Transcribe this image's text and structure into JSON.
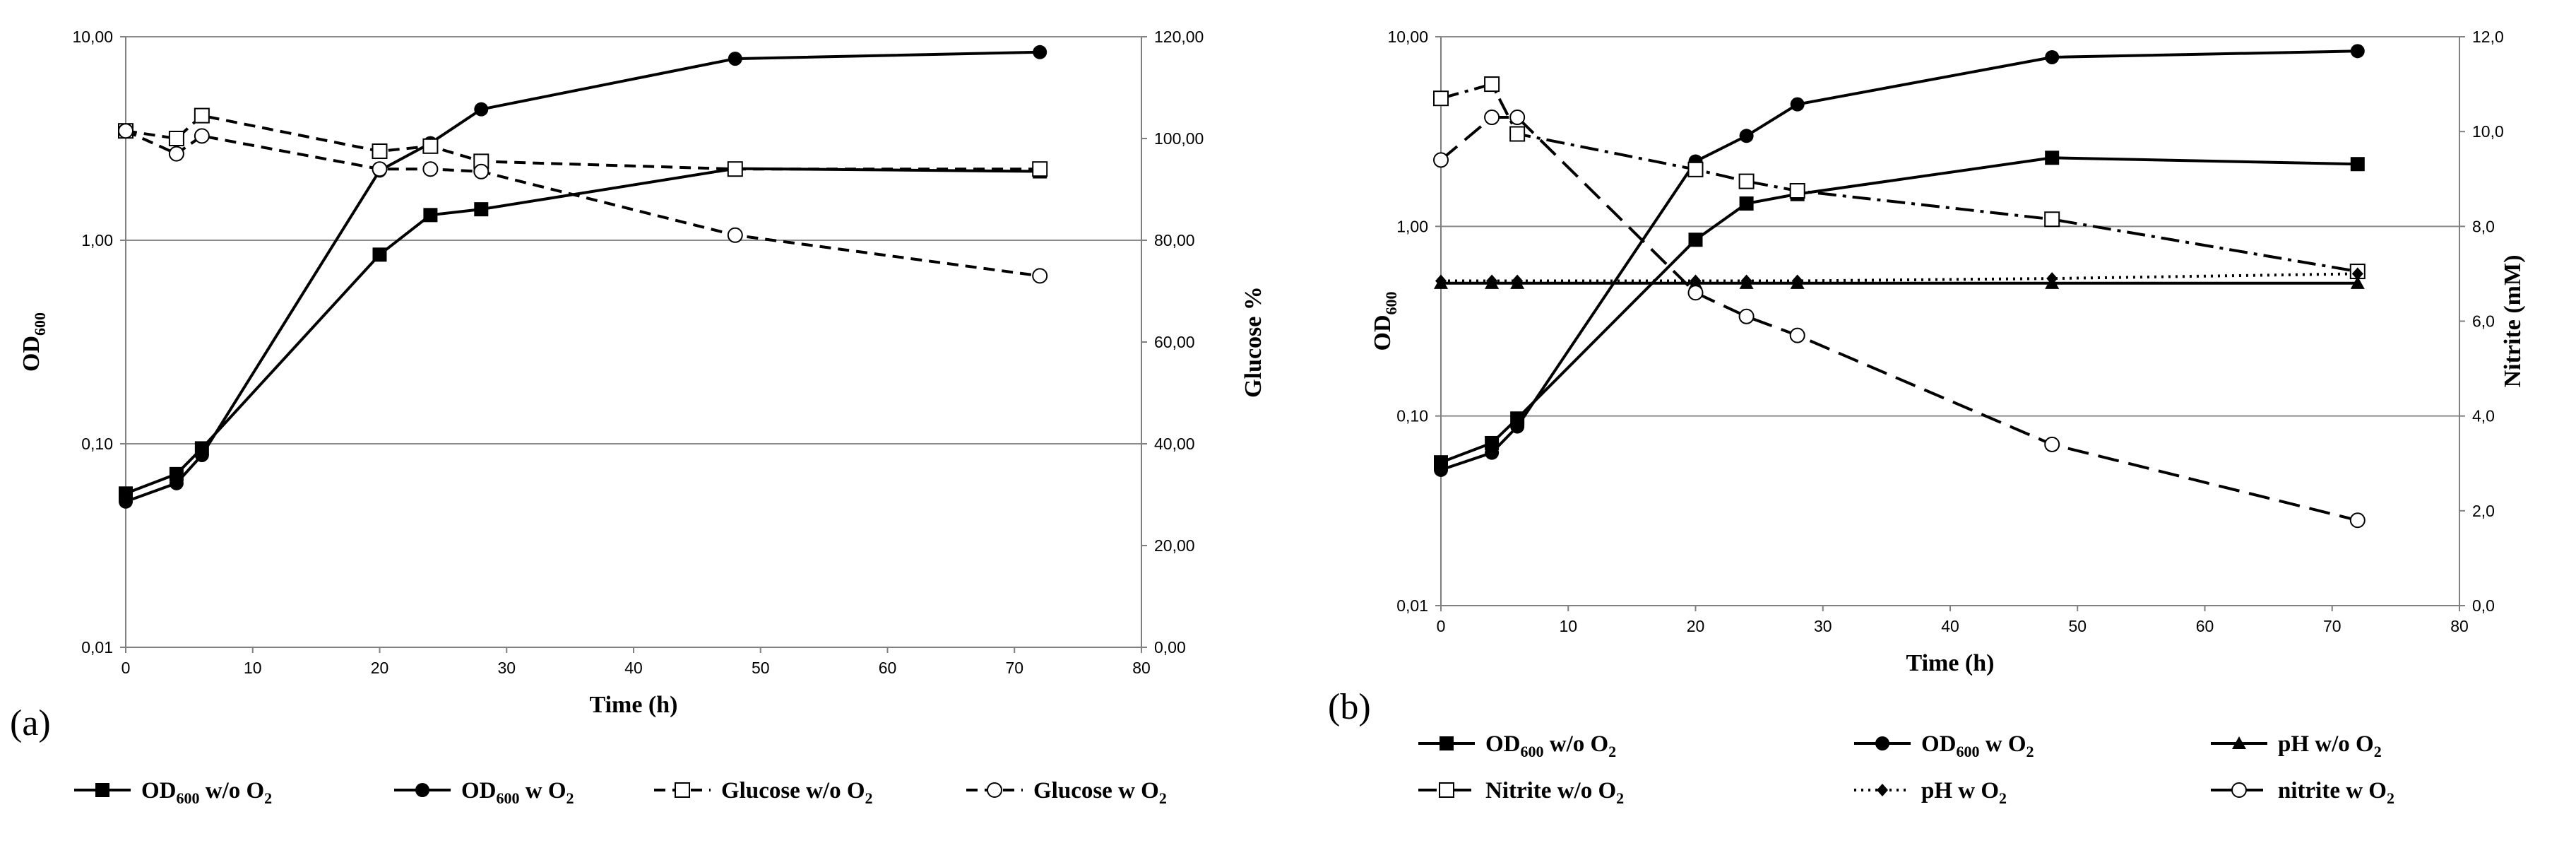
{
  "chart_data": [
    {
      "type": "line",
      "panel_label": "(a)",
      "xlabel": "Time  (h)",
      "ylabel": "OD",
      "ylabel_sub": "600",
      "y2label": "Glucose %",
      "xlim": [
        0,
        80
      ],
      "ylim": [
        0.01,
        10
      ],
      "yscale": "log",
      "y2lim": [
        0,
        120
      ],
      "x_ticks": [
        "0",
        "10",
        "20",
        "30",
        "40",
        "50",
        "60",
        "70",
        "80"
      ],
      "y_ticks": [
        "0,01",
        "0,10",
        "1,00",
        "10,00"
      ],
      "y2_ticks": [
        "0,00",
        "20,00",
        "40,00",
        "60,00",
        "80,00",
        "100,00",
        "120,00"
      ],
      "series": [
        {
          "name": "OD600 w/o O2",
          "legend": {
            "pre": "OD",
            "sub1": "600",
            "mid": "   w/o  O",
            "sub2": "2"
          },
          "axis": "left",
          "marker": "square-filled",
          "dash": "solid",
          "x": [
            0,
            4,
            6,
            20,
            24,
            28,
            48,
            72
          ],
          "values": [
            0.057,
            0.071,
            0.095,
            0.85,
            1.33,
            1.42,
            2.25,
            2.18
          ]
        },
        {
          "name": "OD600 w O2",
          "legend": {
            "pre": "OD",
            "sub1": "600",
            "mid": "  w   O",
            "sub2": "2"
          },
          "axis": "left",
          "marker": "circle-filled",
          "dash": "solid",
          "x": [
            0,
            4,
            6,
            20,
            24,
            28,
            48,
            72
          ],
          "values": [
            0.052,
            0.064,
            0.088,
            2.2,
            3.0,
            4.4,
            7.8,
            8.4
          ]
        },
        {
          "name": "Glucose w/o O2",
          "legend": {
            "pre": "Glucose w/o  O",
            "sub1": "",
            "mid": "",
            "sub2": "2"
          },
          "axis": "right",
          "marker": "square-open",
          "dash": "dash",
          "x": [
            0,
            4,
            6,
            20,
            24,
            28,
            48,
            72
          ],
          "values": [
            101.5,
            100,
            104.5,
            97.5,
            98.5,
            95.5,
            94,
            94
          ]
        },
        {
          "name": "Glucose w O2",
          "legend": {
            "pre": "Glucose w   O",
            "sub1": "",
            "mid": "",
            "sub2": "2"
          },
          "axis": "right",
          "marker": "circle-open",
          "dash": "dash",
          "x": [
            0,
            4,
            6,
            20,
            24,
            28,
            48,
            72
          ],
          "values": [
            101.5,
            97,
            100.5,
            94,
            94,
            93.5,
            81,
            73
          ]
        }
      ]
    },
    {
      "type": "line",
      "panel_label": "(b)",
      "xlabel": "Time (h)",
      "ylabel": "OD",
      "ylabel_sub": "600",
      "y2label": "Nitrite (mM)",
      "xlim": [
        0,
        80
      ],
      "ylim": [
        0.01,
        10
      ],
      "yscale": "log",
      "y2lim": [
        0,
        12
      ],
      "x_ticks": [
        "0",
        "10",
        "20",
        "30",
        "40",
        "50",
        "60",
        "70",
        "80"
      ],
      "y_ticks": [
        "0,01",
        "0,10",
        "1,00",
        "10,00"
      ],
      "y2_ticks": [
        "0,0",
        "2,0",
        "4,0",
        "6,0",
        "8,0",
        "10,0",
        "12,0"
      ],
      "series": [
        {
          "name": "OD600 w/o O2",
          "legend": {
            "pre": "OD",
            "sub1": "600",
            "mid": "  w/o  O",
            "sub2": "2"
          },
          "axis": "left",
          "marker": "square-filled",
          "dash": "solid",
          "x": [
            0,
            4,
            6,
            20,
            24,
            28,
            48,
            72
          ],
          "values": [
            0.057,
            0.072,
            0.097,
            0.85,
            1.32,
            1.48,
            2.3,
            2.13
          ]
        },
        {
          "name": "OD600 w O2",
          "legend": {
            "pre": "OD",
            "sub1": "600",
            "mid": "  w   O",
            "sub2": "2"
          },
          "axis": "left",
          "marker": "circle-filled",
          "dash": "solid",
          "x": [
            0,
            4,
            6,
            20,
            24,
            28,
            48,
            72
          ],
          "values": [
            0.052,
            0.064,
            0.088,
            2.2,
            3.0,
            4.4,
            7.8,
            8.4
          ]
        },
        {
          "name": "pH w/o O2",
          "legend": {
            "pre": "pH w/o  O",
            "sub1": "",
            "mid": "",
            "sub2": "2"
          },
          "axis": "right",
          "marker": "triangle-filled",
          "dash": "solid",
          "x": [
            0,
            4,
            6,
            20,
            24,
            28,
            48,
            72
          ],
          "values": [
            6.8,
            6.8,
            6.8,
            6.8,
            6.8,
            6.8,
            6.8,
            6.8
          ]
        },
        {
          "name": "Nitrite w/o O2",
          "legend": {
            "pre": "Nitrite w/o  O",
            "sub1": "",
            "mid": "",
            "sub2": "2"
          },
          "axis": "right",
          "marker": "square-open",
          "dash": "dashdot",
          "x": [
            0,
            4,
            6,
            20,
            24,
            28,
            48,
            72
          ],
          "values": [
            10.7,
            11.0,
            9.95,
            9.2,
            8.95,
            8.75,
            8.15,
            7.05
          ]
        },
        {
          "name": "pH w O2",
          "legend": {
            "pre": "pH  w   O",
            "sub1": "",
            "mid": "",
            "sub2": "2"
          },
          "axis": "right",
          "marker": "diamond-filled",
          "dash": "dot",
          "x": [
            0,
            4,
            6,
            20,
            24,
            28,
            48,
            72
          ],
          "values": [
            6.85,
            6.85,
            6.85,
            6.85,
            6.85,
            6.85,
            6.9,
            7.0
          ]
        },
        {
          "name": "nitrite w O2",
          "legend": {
            "pre": "nitrite w   O",
            "sub1": "",
            "mid": "",
            "sub2": "2"
          },
          "axis": "right",
          "marker": "circle-open",
          "dash": "longdash",
          "x": [
            0,
            4,
            6,
            20,
            24,
            28,
            48,
            72
          ],
          "values": [
            9.4,
            10.3,
            10.3,
            6.6,
            6.1,
            5.7,
            3.4,
            1.8
          ]
        }
      ]
    }
  ]
}
